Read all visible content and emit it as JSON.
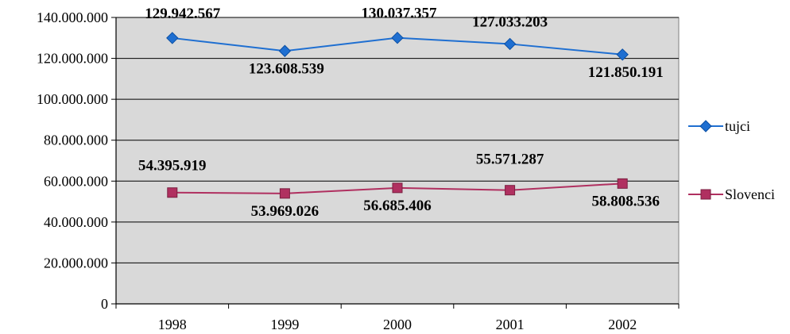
{
  "chart_data": {
    "type": "line",
    "categories": [
      "1998",
      "1999",
      "2000",
      "2001",
      "2002"
    ],
    "series": [
      {
        "name": "tujci",
        "values": [
          129942567,
          123608539,
          130037357,
          127033203,
          121850191
        ],
        "labels": [
          "129.942.567",
          "123.608.539",
          "130.037.357",
          "127.033.203",
          "121.850.191"
        ],
        "color": "#1f6fd1",
        "marker": "diamond"
      },
      {
        "name": "Slovenci",
        "values": [
          54395919,
          53969026,
          56685406,
          55571287,
          58808536
        ],
        "labels": [
          "54.395.919",
          "53.969.026",
          "56.685.406",
          "55.571.287",
          "58.808.536"
        ],
        "color": "#b03060",
        "marker": "square"
      }
    ],
    "ylim": [
      0,
      140000000
    ],
    "yticks": [
      "0",
      "20.000.000",
      "40.000.000",
      "60.000.000",
      "80.000.000",
      "100.000.000",
      "120.000.000",
      "140.000.000"
    ],
    "grid": true,
    "plot_background": "#d9d9d9",
    "legend_position": "right"
  }
}
